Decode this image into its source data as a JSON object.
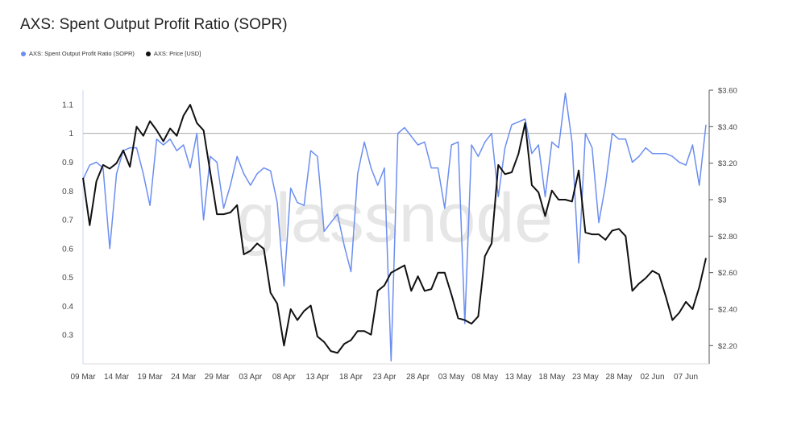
{
  "title": "AXS: Spent Output Profit Ratio (SOPR)",
  "watermark": "glassnode",
  "legend": [
    {
      "label": "AXS: Spent Output Profit Ratio (SOPR)",
      "color": "#6b8ef0"
    },
    {
      "label": "AXS: Price [USD]",
      "color": "#111111"
    }
  ],
  "chart_data": {
    "type": "line",
    "title": "AXS: Spent Output Profit Ratio (SOPR)",
    "x_tick_labels": [
      "09 Mar",
      "14 Mar",
      "19 Mar",
      "24 Mar",
      "29 Mar",
      "03 Apr",
      "08 Apr",
      "13 Apr",
      "18 Apr",
      "23 Apr",
      "28 Apr",
      "03 May",
      "08 May",
      "13 May",
      "18 May",
      "23 May",
      "28 May",
      "02 Jun",
      "07 Jun"
    ],
    "y_left_ticks": [
      "0.3",
      "0.4",
      "0.5",
      "0.6",
      "0.7",
      "0.8",
      "0.9",
      "1",
      "1.1"
    ],
    "y_right_ticks": [
      "$2.20",
      "$2.40",
      "$2.60",
      "$2.80",
      "$3",
      "$3.20",
      "$3.40",
      "$3.60"
    ],
    "y_left_lim": [
      0.2,
      1.15
    ],
    "y_right_lim": [
      2.1,
      3.6
    ],
    "reference_line": 1,
    "x_start_day": 0,
    "series": [
      {
        "name": "AXS: Spent Output Profit Ratio (SOPR)",
        "axis": "left",
        "color": "#6b8ef0",
        "values": [
          0.84,
          0.89,
          0.9,
          0.88,
          0.6,
          0.86,
          0.94,
          0.95,
          0.95,
          0.86,
          0.75,
          0.98,
          0.96,
          0.98,
          0.94,
          0.96,
          0.88,
          1.0,
          0.7,
          0.92,
          0.9,
          0.74,
          0.82,
          0.92,
          0.86,
          0.82,
          0.86,
          0.88,
          0.87,
          0.76,
          0.47,
          0.81,
          0.76,
          0.75,
          0.94,
          0.92,
          0.66,
          0.69,
          0.72,
          0.61,
          0.52,
          0.86,
          0.97,
          0.88,
          0.82,
          0.88,
          0.21,
          1.0,
          1.02,
          0.99,
          0.96,
          0.97,
          0.88,
          0.88,
          0.74,
          0.96,
          0.97,
          0.34,
          0.96,
          0.92,
          0.97,
          1.0,
          0.78,
          0.95,
          1.03,
          1.04,
          1.05,
          0.93,
          0.96,
          0.78,
          0.97,
          0.95,
          1.14,
          0.97,
          0.55,
          1.0,
          0.95,
          0.69,
          0.82,
          1.0,
          0.98,
          0.98,
          0.9,
          0.92,
          0.95,
          0.93,
          0.93,
          0.93,
          0.92,
          0.9,
          0.89,
          0.96,
          0.82,
          1.03
        ]
      },
      {
        "name": "AXS: Price [USD]",
        "axis": "right",
        "color": "#111111",
        "values": [
          3.12,
          2.86,
          3.1,
          3.19,
          3.17,
          3.2,
          3.27,
          3.18,
          3.4,
          3.35,
          3.43,
          3.38,
          3.32,
          3.39,
          3.35,
          3.46,
          3.52,
          3.42,
          3.38,
          3.15,
          2.92,
          2.92,
          2.93,
          2.97,
          2.7,
          2.72,
          2.76,
          2.73,
          2.49,
          2.43,
          2.2,
          2.4,
          2.34,
          2.39,
          2.42,
          2.25,
          2.22,
          2.17,
          2.16,
          2.21,
          2.23,
          2.28,
          2.28,
          2.26,
          2.5,
          2.53,
          2.6,
          2.62,
          2.64,
          2.5,
          2.58,
          2.5,
          2.51,
          2.6,
          2.6,
          2.48,
          2.35,
          2.34,
          2.32,
          2.36,
          2.69,
          2.76,
          3.19,
          3.14,
          3.15,
          3.25,
          3.42,
          3.08,
          3.04,
          2.91,
          3.05,
          3.0,
          3.0,
          2.99,
          3.16,
          2.82,
          2.81,
          2.81,
          2.78,
          2.83,
          2.84,
          2.8,
          2.5,
          2.54,
          2.57,
          2.61,
          2.59,
          2.47,
          2.34,
          2.38,
          2.44,
          2.4,
          2.52,
          2.68
        ]
      }
    ]
  }
}
